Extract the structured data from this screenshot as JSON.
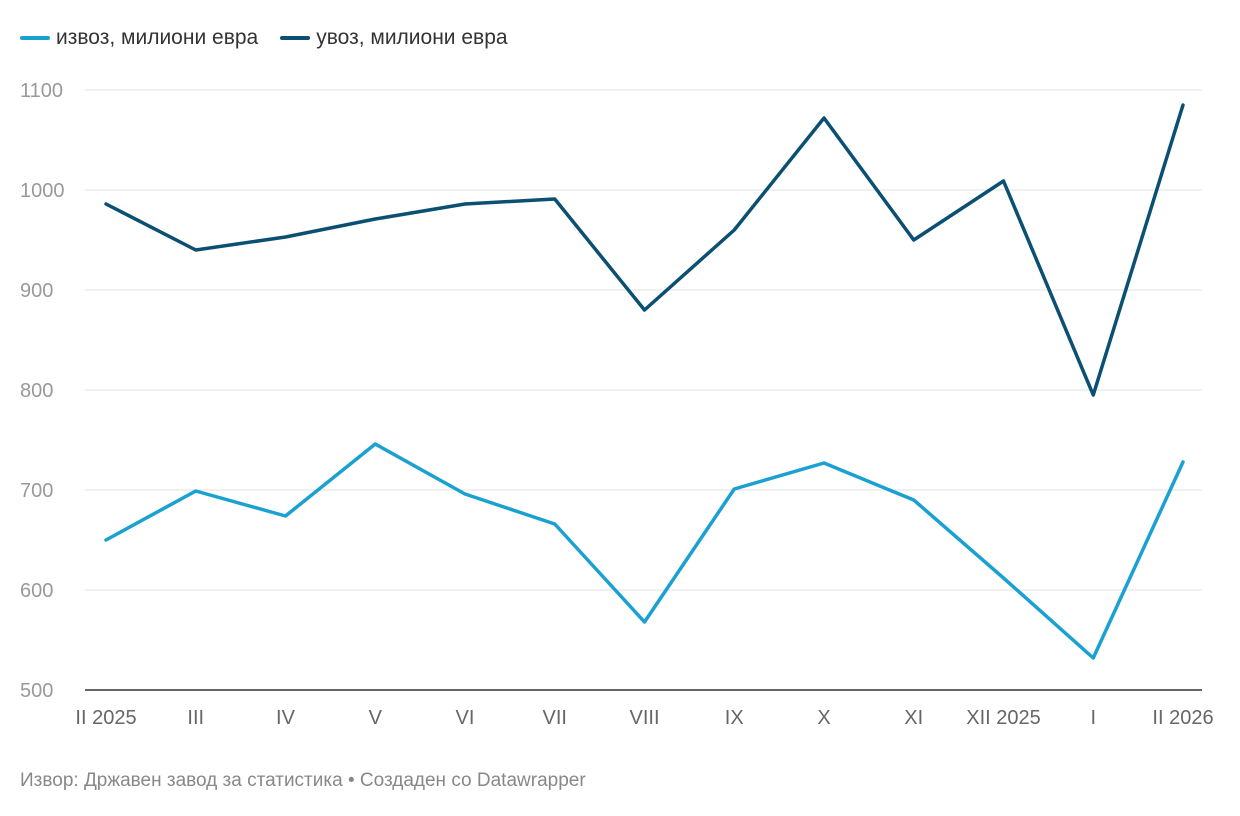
{
  "chart_data": {
    "type": "line",
    "title": "",
    "xlabel": "",
    "ylabel": "",
    "categories": [
      "II 2025",
      "III",
      "IV",
      "V",
      "VI",
      "VII",
      "VIII",
      "IX",
      "X",
      "XI",
      "XII 2025",
      "I",
      "II 2026"
    ],
    "yticks": [
      500,
      600,
      700,
      800,
      900,
      1000,
      1100
    ],
    "ylim": [
      500,
      1100
    ],
    "grid": true,
    "legend_position": "top-left",
    "series": [
      {
        "name": "извоз, милиони евра",
        "color": "#1ba1d1",
        "values": [
          650,
          699,
          674,
          746,
          696,
          666,
          568,
          701,
          727,
          690,
          612,
          532,
          728
        ]
      },
      {
        "name": "увоз, милиони евра",
        "color": "#0b4f72",
        "values": [
          986,
          940,
          953,
          971,
          986,
          991,
          880,
          960,
          1072,
          950,
          1009,
          795,
          1085
        ]
      }
    ]
  },
  "footer": "Извор: Државен завод за статистика • Создаден со Datawrapper"
}
